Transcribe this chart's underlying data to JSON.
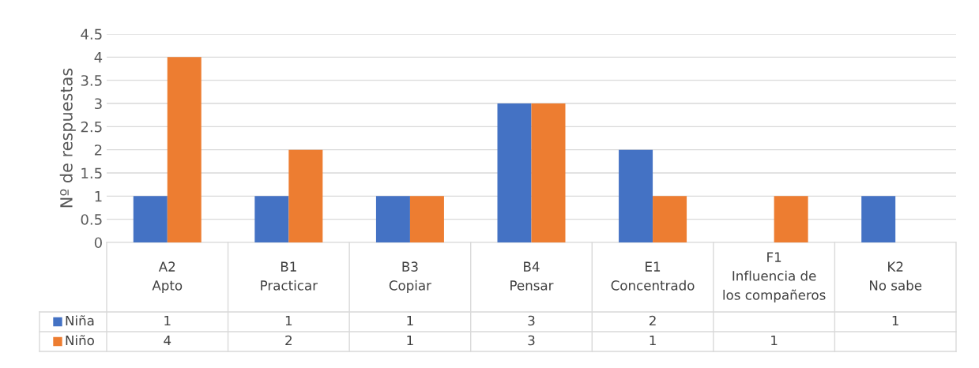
{
  "chart_data": {
    "type": "bar",
    "ylabel": "Nº de respuestas",
    "categories": [
      "A2\nApto",
      "B1\nPracticar",
      "B3\nCopiar",
      "B4\nPensar",
      "E1\nConcentrado",
      "F1\nInfluencia de\nlos compañeros",
      "K2\nNo sabe"
    ],
    "series": [
      {
        "name": "Niña",
        "color": "#4472c4",
        "values": [
          1,
          1,
          1,
          3,
          2,
          null,
          1
        ]
      },
      {
        "name": "Niño",
        "color": "#ed7d31",
        "values": [
          4,
          2,
          1,
          3,
          1,
          1,
          null
        ]
      }
    ],
    "ylim": [
      0,
      4.5
    ],
    "yticks": [
      0,
      0.5,
      1,
      1.5,
      2,
      2.5,
      3,
      3.5,
      4,
      4.5
    ],
    "grid": "y",
    "legend": "bottom",
    "data_labels": true
  }
}
